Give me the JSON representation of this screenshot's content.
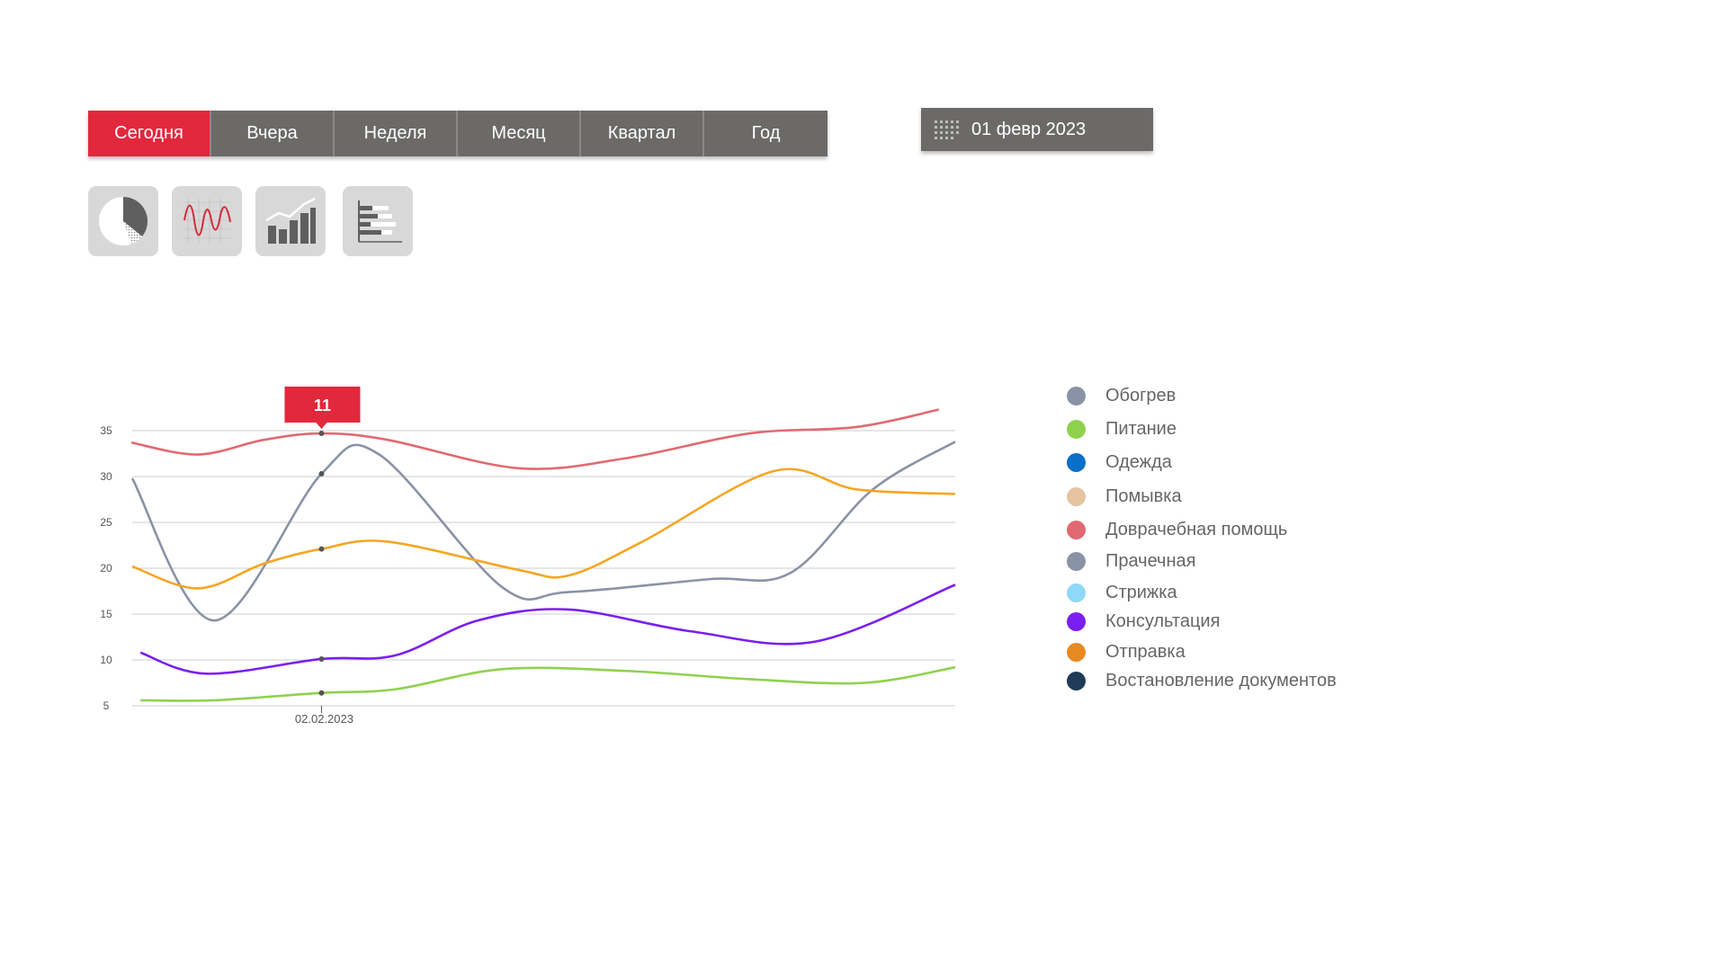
{
  "tabs": [
    {
      "label": "Сегодня",
      "active": true
    },
    {
      "label": "Вчера",
      "active": false
    },
    {
      "label": "Неделя",
      "active": false
    },
    {
      "label": "Месяц",
      "active": false
    },
    {
      "label": "Квартал",
      "active": false
    },
    {
      "label": "Год",
      "active": false
    }
  ],
  "date_picker": {
    "value": "01 февр 2023",
    "icon": "calendar-grid-icon"
  },
  "chart_type_buttons": [
    {
      "icon": "pie-chart-icon"
    },
    {
      "icon": "line-chart-icon"
    },
    {
      "icon": "bar-chart-icon"
    },
    {
      "icon": "horizontal-bar-chart-icon"
    }
  ],
  "chart_data": {
    "type": "line",
    "y_ticks": [
      5,
      10,
      15,
      20,
      25,
      30,
      35
    ],
    "ylim": [
      5,
      35
    ],
    "x_tick_label": "02.02.2023",
    "tooltip": {
      "value": "11",
      "color": "#e2283c"
    },
    "grid": true,
    "legend_position": "right",
    "series": [
      {
        "name": "Обогрев",
        "color": "#8a93a6",
        "points": []
      },
      {
        "name": "Питание",
        "color": "#8fd14f",
        "points": [
          [
            0.01,
            5.6
          ],
          [
            0.1,
            5.6
          ],
          [
            0.23,
            6.4
          ],
          [
            0.32,
            6.8
          ],
          [
            0.45,
            9.0
          ],
          [
            0.6,
            8.8
          ],
          [
            0.75,
            7.9
          ],
          [
            0.89,
            7.5
          ],
          [
            1.0,
            9.2
          ]
        ]
      },
      {
        "name": "Одежда",
        "color": "#0b6fc7",
        "points": []
      },
      {
        "name": "Помывка",
        "color": "#e6c3a1",
        "points": []
      },
      {
        "name": "Доврачебная помощь",
        "color": "#e06a72",
        "points": [
          [
            -0.001,
            33.7
          ],
          [
            0.08,
            32.4
          ],
          [
            0.16,
            34.0
          ],
          [
            0.23,
            34.7
          ],
          [
            0.31,
            34.0
          ],
          [
            0.47,
            30.9
          ],
          [
            0.6,
            32.0
          ],
          [
            0.75,
            34.7
          ],
          [
            0.88,
            35.4
          ],
          [
            0.98,
            37.3
          ]
        ]
      },
      {
        "name": "Прачечная",
        "color": "#8a93a6",
        "points": [
          [
            0.0,
            29.8
          ],
          [
            0.1,
            14.3
          ],
          [
            0.23,
            30.3
          ],
          [
            0.3,
            32.4
          ],
          [
            0.45,
            17.9
          ],
          [
            0.53,
            17.4
          ],
          [
            0.7,
            18.8
          ],
          [
            0.8,
            19.5
          ],
          [
            0.9,
            28.6
          ],
          [
            1.0,
            33.8
          ]
        ]
      },
      {
        "name": "Стрижка",
        "color": "#8fd8f6",
        "points": []
      },
      {
        "name": "Консультация",
        "color": "#7a1ff0",
        "points": [
          [
            0.01,
            10.8
          ],
          [
            0.09,
            8.5
          ],
          [
            0.23,
            10.1
          ],
          [
            0.32,
            10.5
          ],
          [
            0.42,
            14.3
          ],
          [
            0.53,
            15.5
          ],
          [
            0.68,
            13.1
          ],
          [
            0.83,
            12.0
          ],
          [
            1.0,
            18.2
          ]
        ]
      },
      {
        "name": "Отправка",
        "color": "#e88a22",
        "points": []
      },
      {
        "name": "Востановление документов",
        "color": "#1f3b57",
        "points": []
      },
      {
        "name": "",
        "color": "#f5a623",
        "points": [
          [
            0.0,
            20.2
          ],
          [
            0.08,
            17.8
          ],
          [
            0.16,
            20.5
          ],
          [
            0.23,
            22.1
          ],
          [
            0.31,
            22.9
          ],
          [
            0.47,
            19.8
          ],
          [
            0.53,
            19.2
          ],
          [
            0.62,
            22.9
          ],
          [
            0.78,
            30.6
          ],
          [
            0.88,
            28.6
          ],
          [
            1.0,
            28.1
          ]
        ]
      }
    ]
  }
}
